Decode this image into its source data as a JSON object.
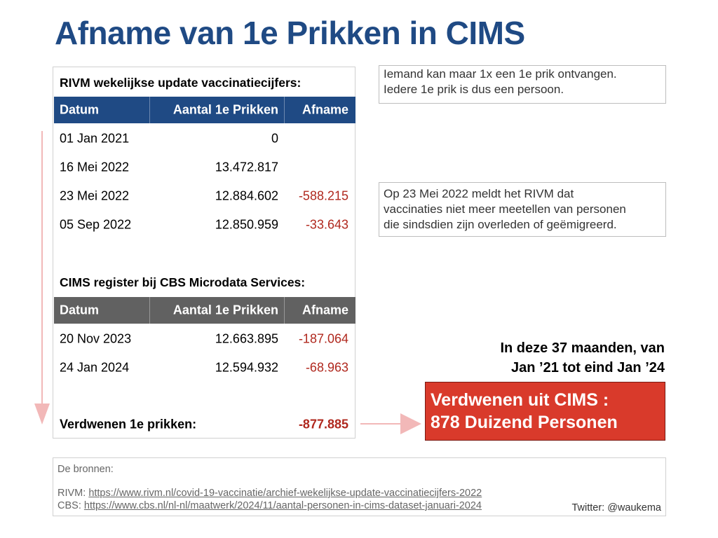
{
  "title": "Afname van 1e Prikken in CIMS",
  "rivm": {
    "section_title": "RIVM wekelijkse update vaccinatiecijfers:",
    "columns": [
      "Datum",
      "Aantal 1e Prikken",
      "Afname"
    ],
    "rows": [
      {
        "date": "01 Jan 2021",
        "count": "0",
        "decrease": ""
      },
      {
        "date": "16 Mei 2022",
        "count": "13.472.817",
        "decrease": ""
      },
      {
        "date": "23 Mei 2022",
        "count": "12.884.602",
        "decrease": "-588.215"
      },
      {
        "date": "05 Sep 2022",
        "count": "12.850.959",
        "decrease": "-33.643"
      }
    ]
  },
  "cims": {
    "section_title": "CIMS register bij CBS Microdata Services:",
    "columns": [
      "Datum",
      "Aantal 1e Prikken",
      "Afname"
    ],
    "rows": [
      {
        "date": "20 Nov 2023",
        "count": "12.663.895",
        "decrease": "-187.064"
      },
      {
        "date": "24 Jan 2024",
        "count": "12.594.932",
        "decrease": "-68.963"
      }
    ]
  },
  "total": {
    "label": "Verdwenen 1e prikken:",
    "value": "-877.885"
  },
  "notes": {
    "note1": [
      "Iemand kan maar 1x een 1e prik ontvangen.",
      "Iedere 1e prik is dus een persoon."
    ],
    "note2": [
      "Op 23 Mei 2022 meldt het RIVM dat",
      "vaccinaties niet meer meetellen van personen",
      "die sindsdien zijn overleden of geëmigreerd."
    ]
  },
  "summary": {
    "line1": "In deze 37 maanden, van",
    "line2": "Jan ’21 tot eind Jan ’24"
  },
  "highlight": {
    "line1": "Verdwenen uit CIMS :",
    "line2": "878 Duizend Personen"
  },
  "sources": {
    "label": "De bronnen:",
    "rivm_prefix": "RIVM: ",
    "rivm_url": "https://www.rivm.nl/covid-19-vaccinatie/archief-wekelijkse-update-vaccinatiecijfers-2022",
    "cbs_prefix": "CBS: ",
    "cbs_url": "https://www.cbs.nl/nl-nl/maatwerk/2024/11/aantal-personen-in-cims-dataset-januari-2024",
    "twitter": "Twitter: @waukema"
  },
  "colors": {
    "title": "#1f4a84",
    "header_blue": "#1f4a84",
    "header_gray": "#616161",
    "negative": "#b0281e",
    "highlight_bg": "#d93a2b",
    "arrow": "#f2b8b8"
  }
}
